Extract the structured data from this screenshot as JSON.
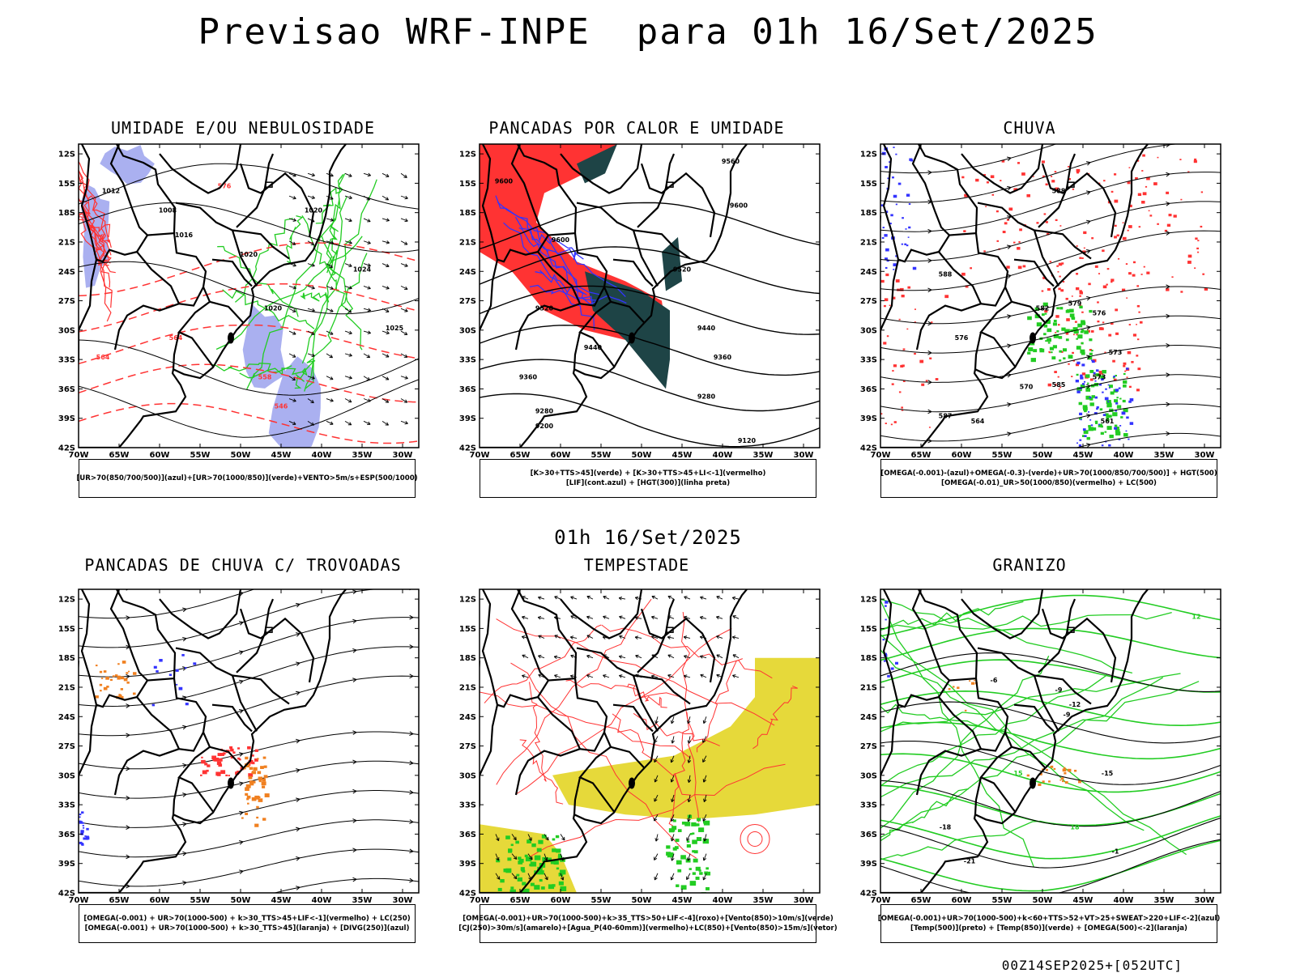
{
  "main_title": "Previsao WRF-INPE  para 01h 16/Set/2025",
  "mid_title": "01h 16/Set/2025",
  "footer": "00Z14SEP2025+[052UTC]",
  "axes": {
    "lat_labels": [
      "12S",
      "15S",
      "18S",
      "21S",
      "24S",
      "27S",
      "30S",
      "33S",
      "36S",
      "39S",
      "42S"
    ],
    "lon_labels": [
      "70W",
      "65W",
      "60W",
      "55W",
      "50W",
      "45W",
      "40W",
      "35W",
      "30W"
    ]
  },
  "colors": {
    "red": "#ff3333",
    "green": "#22cc22",
    "blue": "#3333ff",
    "lavender": "#aab0f0",
    "dark_teal": "#1e4446",
    "yellow": "#e6d93a",
    "orange": "#f08020",
    "black": "#000000"
  },
  "panels": [
    {
      "id": "umidade",
      "title": "UMIDADE E/OU NEBULOSIDADE",
      "legend": [
        "[UR>70(850/700/500)](azul)+[UR>70(1000/850)](verde)+VENTO>5m/s+ESP(500/1000)"
      ],
      "contour_labels": [
        "1012",
        "1008",
        "1016",
        "1020",
        "1024",
        "1025",
        "576",
        "570",
        "564",
        "558",
        "552",
        "546",
        "1000"
      ]
    },
    {
      "id": "pancadas-calor",
      "title": "PANCADAS POR CALOR E UMIDADE",
      "legend": [
        "[K>30+TTS>45](verde) + [K>30+TTS>45+LI<-1](vermelho)",
        "[LIF](cont.azul) + [HGT(300)](linha preta)"
      ],
      "contour_labels": [
        "9600",
        "9520",
        "9440",
        "9360",
        "9280",
        "9200",
        "9120",
        "9560"
      ]
    },
    {
      "id": "chuva",
      "title": "CHUVA",
      "legend": [
        "[OMEGA(-0.001)-(azul)+OMEGA(-0.3)-(verde)+UR>70(1000/850/700/500)] + HGT(500)",
        "[OMEGA(-0.01)_UR>50(1000/850)(vermelho) + LC(500)"
      ],
      "contour_labels": [
        "588",
        "582",
        "576",
        "570",
        "564",
        "587",
        "579",
        "573",
        "585",
        "561"
      ]
    },
    {
      "id": "pancadas-trovoadas",
      "title": "PANCADAS DE CHUVA C/ TROVOADAS",
      "legend": [
        "[OMEGA(-0.001) + UR>70(1000-500) + k>30_TTS>45+LIF<-1](vermelho) + LC(250)",
        "[OMEGA(-0.001) + UR>70(1000-500) + k>30_TTS>45](laranja) + [DIVG(250)](azul)"
      ],
      "contour_labels": []
    },
    {
      "id": "tempestade",
      "title": "TEMPESTADE",
      "legend": [
        "[OMEGA(-0.001)+UR>70(1000-500)+k>35_TTS>50+LIF<-4](roxo)+[Vento(850)>10m/s](verde)",
        "[CJ(250)>30m/s](amarelo)+[Agua_P(40-60mm)](vermelho)+LC(850)+[Vento(850)>15m/s](vetor)"
      ],
      "contour_labels": []
    },
    {
      "id": "granizo",
      "title": "GRANIZO",
      "legend": [
        "[OMEGA(-0.001)+UR>70(1000-500)+k<60+TTS>52+VT>25+SWEAT>220+LIF<-2](azul)",
        "[Temp(500)](preto) + [Temp(850)](verde) + [OMEGA(500)<-2](laranja)"
      ],
      "contour_labels": [
        "-6",
        "-9",
        "-12",
        "-15",
        "-18",
        "-21",
        "12",
        "15",
        "18",
        "-1"
      ]
    }
  ]
}
